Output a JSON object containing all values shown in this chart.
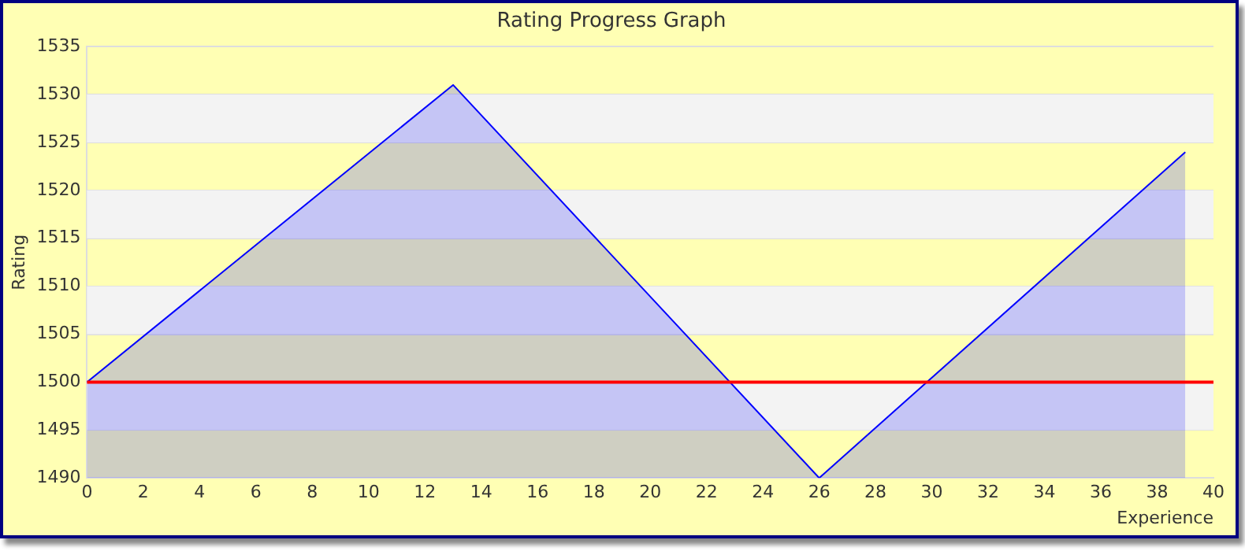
{
  "chart_data": {
    "type": "area",
    "title": "Rating Progress Graph",
    "xlabel": "Experience",
    "ylabel": "Rating",
    "x": [
      0,
      13,
      26,
      39
    ],
    "series": [
      {
        "color": "#0000ff",
        "values": [
          1500,
          1531,
          1490,
          1524
        ]
      }
    ],
    "xlim": [
      0,
      40
    ],
    "xticks": [
      0,
      2,
      4,
      6,
      8,
      10,
      12,
      14,
      16,
      18,
      20,
      22,
      24,
      26,
      28,
      30,
      32,
      34,
      36,
      38,
      40
    ],
    "ylim": [
      1490,
      1535
    ],
    "yticks": [
      1490,
      1495,
      1500,
      1505,
      1510,
      1515,
      1520,
      1525,
      1530,
      1535
    ],
    "ref_lines": [
      {
        "axis": "y",
        "value": 1500,
        "color": "#ff0000"
      }
    ],
    "grid": "y",
    "legend": false,
    "marker": "none"
  }
}
